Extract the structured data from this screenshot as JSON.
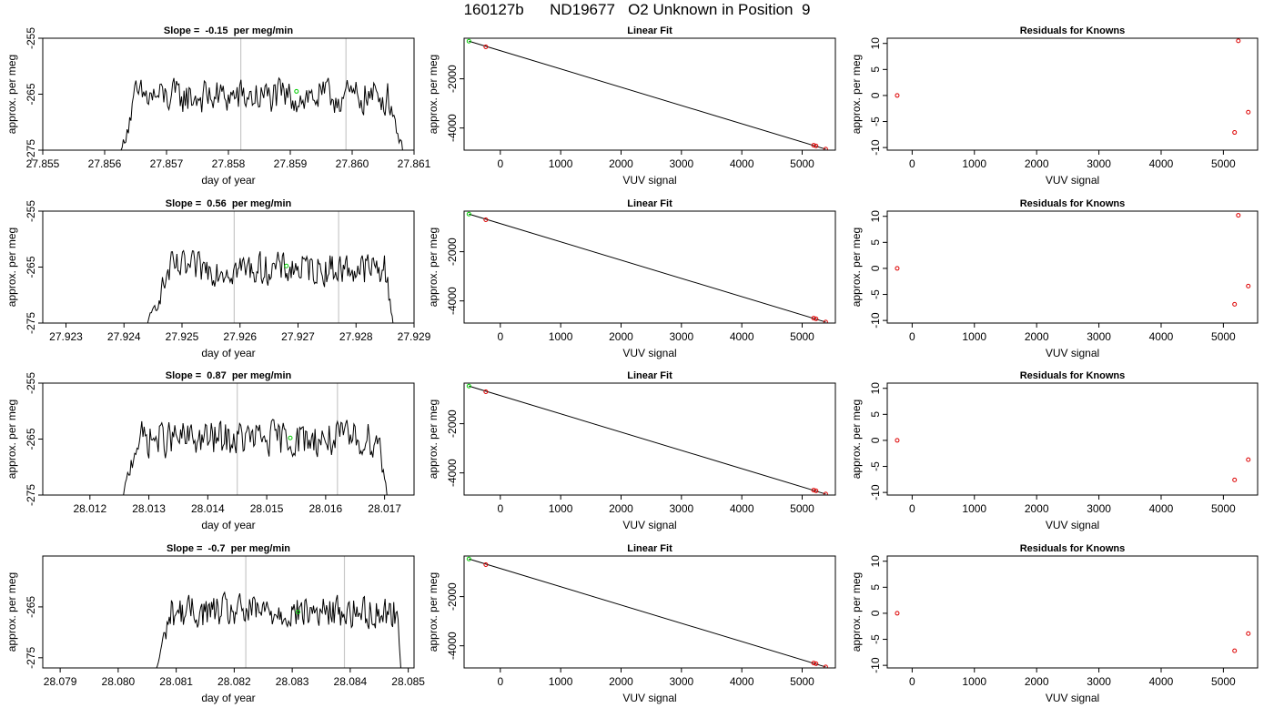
{
  "figure": {
    "title": "160127b      ND19677   O2 Unknown in Position  9"
  },
  "chart_data": [
    {
      "type": "line",
      "panel": "timeseries",
      "row": 1,
      "title": "Slope =  -0.15  per meg/min",
      "xlabel": "day of year",
      "ylabel": "approx. per meg",
      "xlim": [
        27.855,
        27.861
      ],
      "ylim": [
        -275,
        -255
      ],
      "xticks": [
        27.855,
        27.856,
        27.857,
        27.858,
        27.859,
        27.86,
        27.861
      ],
      "xtick_labels": [
        "27.855",
        "27.856",
        "27.857",
        "27.858",
        "27.859",
        "27.860",
        "27.861"
      ],
      "yticks": [
        -275,
        -265,
        -255
      ],
      "ytick_labels": [
        "-275",
        "-265",
        "-255"
      ],
      "vlines": [
        27.8582,
        27.8599
      ],
      "signal": {
        "start": 27.8562,
        "plateau_start": 27.8565,
        "plateau_end": 27.8606,
        "end": 27.8609,
        "level": -265.5,
        "amplitude": 3.2
      },
      "mean_point": {
        "x": 27.8591,
        "y": -264.5
      }
    },
    {
      "type": "scatter",
      "panel": "linear_fit",
      "row": 1,
      "title": "Linear Fit",
      "xlabel": "VUV signal",
      "ylabel": "approx. per meg",
      "xlim": [
        -600,
        5550
      ],
      "ylim": [
        -4900,
        -350
      ],
      "xticks": [
        0,
        1000,
        2000,
        3000,
        4000,
        5000
      ],
      "xtick_labels": [
        "0",
        "1000",
        "2000",
        "3000",
        "4000",
        "5000"
      ],
      "yticks": [
        -4000,
        -2000
      ],
      "ytick_labels": [
        "-4000",
        "-2000"
      ],
      "line": [
        [
          -520,
          -470
        ],
        [
          5390,
          -4860
        ]
      ],
      "points_green": [
        [
          -520,
          -470
        ]
      ],
      "points_red": [
        [
          -240,
          -700
        ],
        [
          5190,
          -4700
        ],
        [
          5230,
          -4730
        ],
        [
          5390,
          -4860
        ]
      ]
    },
    {
      "type": "scatter",
      "panel": "residuals",
      "row": 1,
      "title": "Residuals for Knowns",
      "xlabel": "VUV signal",
      "ylabel": "approx. per meg",
      "xlim": [
        -400,
        5550
      ],
      "ylim": [
        -10.5,
        11
      ],
      "xticks": [
        0,
        1000,
        2000,
        3000,
        4000,
        5000
      ],
      "xtick_labels": [
        "0",
        "1000",
        "2000",
        "3000",
        "4000",
        "5000"
      ],
      "yticks": [
        -10,
        -5,
        0,
        5,
        10
      ],
      "ytick_labels": [
        "-10",
        "-5",
        "0",
        "5",
        "10"
      ],
      "points_red": [
        [
          -240,
          0
        ],
        [
          5240,
          10.5
        ],
        [
          5400,
          -3.2
        ],
        [
          5180,
          -7.1
        ]
      ]
    },
    {
      "type": "line",
      "panel": "timeseries",
      "row": 2,
      "title": "Slope =  0.56  per meg/min",
      "xlabel": "day of year",
      "ylabel": "approx. per meg",
      "xlim": [
        27.9226,
        27.929
      ],
      "ylim": [
        -275,
        -255
      ],
      "xticks": [
        27.923,
        27.924,
        27.925,
        27.926,
        27.927,
        27.928,
        27.929
      ],
      "xtick_labels": [
        "27.923",
        "27.924",
        "27.925",
        "27.926",
        "27.927",
        "27.928",
        "27.929"
      ],
      "yticks": [
        -275,
        -265,
        -255
      ],
      "ytick_labels": [
        "-275",
        "-265",
        "-255"
      ],
      "vlines": [
        27.9259,
        27.9277
      ],
      "signal": {
        "start": 27.9243,
        "plateau_start": 27.9248,
        "plateau_end": 27.9285,
        "end": 27.9287,
        "level": -265.3,
        "amplitude": 3.0
      },
      "mean_point": {
        "x": 27.9268,
        "y": -264.8
      }
    },
    {
      "type": "scatter",
      "panel": "linear_fit",
      "row": 2,
      "title": "Linear Fit",
      "xlabel": "VUV signal",
      "ylabel": "approx. per meg",
      "xlim": [
        -600,
        5550
      ],
      "ylim": [
        -4900,
        -350
      ],
      "xticks": [
        0,
        1000,
        2000,
        3000,
        4000,
        5000
      ],
      "xtick_labels": [
        "0",
        "1000",
        "2000",
        "3000",
        "4000",
        "5000"
      ],
      "yticks": [
        -4000,
        -2000
      ],
      "ytick_labels": [
        "-4000",
        "-2000"
      ],
      "line": [
        [
          -520,
          -470
        ],
        [
          5390,
          -4860
        ]
      ],
      "points_green": [
        [
          -520,
          -470
        ]
      ],
      "points_red": [
        [
          -240,
          -700
        ],
        [
          5190,
          -4700
        ],
        [
          5230,
          -4730
        ],
        [
          5390,
          -4860
        ]
      ]
    },
    {
      "type": "scatter",
      "panel": "residuals",
      "row": 2,
      "title": "Residuals for Knowns",
      "xlabel": "VUV signal",
      "ylabel": "approx. per meg",
      "xlim": [
        -400,
        5550
      ],
      "ylim": [
        -10.5,
        11
      ],
      "xticks": [
        0,
        1000,
        2000,
        3000,
        4000,
        5000
      ],
      "xtick_labels": [
        "0",
        "1000",
        "2000",
        "3000",
        "4000",
        "5000"
      ],
      "yticks": [
        -10,
        -5,
        0,
        5,
        10
      ],
      "ytick_labels": [
        "-10",
        "-5",
        "0",
        "5",
        "10"
      ],
      "points_red": [
        [
          -240,
          0
        ],
        [
          5240,
          10.2
        ],
        [
          5400,
          -3.4
        ],
        [
          5180,
          -6.9
        ]
      ]
    },
    {
      "type": "line",
      "panel": "timeseries",
      "row": 3,
      "title": "Slope =  0.87  per meg/min",
      "xlabel": "day of year",
      "ylabel": "approx. per meg",
      "xlim": [
        28.0112,
        28.0175
      ],
      "ylim": [
        -275,
        -255
      ],
      "xticks": [
        28.012,
        28.013,
        28.014,
        28.015,
        28.016,
        28.017
      ],
      "xtick_labels": [
        "28.012",
        "28.013",
        "28.014",
        "28.015",
        "28.016",
        "28.017"
      ],
      "yticks": [
        -275,
        -265,
        -255
      ],
      "ytick_labels": [
        "-275",
        "-265",
        "-255"
      ],
      "vlines": [
        28.0145,
        28.0162
      ],
      "signal": {
        "start": 28.0125,
        "plateau_start": 28.0128,
        "plateau_end": 28.0169,
        "end": 28.0171,
        "level": -265.0,
        "amplitude": 3.3
      },
      "mean_point": {
        "x": 28.0154,
        "y": -264.8
      }
    },
    {
      "type": "scatter",
      "panel": "linear_fit",
      "row": 3,
      "title": "Linear Fit",
      "xlabel": "VUV signal",
      "ylabel": "approx. per meg",
      "xlim": [
        -600,
        5550
      ],
      "ylim": [
        -4900,
        -350
      ],
      "xticks": [
        0,
        1000,
        2000,
        3000,
        4000,
        5000
      ],
      "xtick_labels": [
        "0",
        "1000",
        "2000",
        "3000",
        "4000",
        "5000"
      ],
      "yticks": [
        -4000,
        -2000
      ],
      "ytick_labels": [
        "-4000",
        "-2000"
      ],
      "line": [
        [
          -520,
          -470
        ],
        [
          5390,
          -4860
        ]
      ],
      "points_green": [
        [
          -520,
          -470
        ]
      ],
      "points_red": [
        [
          -240,
          -700
        ],
        [
          5190,
          -4700
        ],
        [
          5230,
          -4730
        ],
        [
          5390,
          -4860
        ]
      ]
    },
    {
      "type": "scatter",
      "panel": "residuals",
      "row": 3,
      "title": "Residuals for Knowns",
      "xlabel": "VUV signal",
      "ylabel": "approx. per meg",
      "xlim": [
        -400,
        5550
      ],
      "ylim": [
        -10.5,
        11
      ],
      "xticks": [
        0,
        1000,
        2000,
        3000,
        4000,
        5000
      ],
      "xtick_labels": [
        "0",
        "1000",
        "2000",
        "3000",
        "4000",
        "5000"
      ],
      "yticks": [
        -10,
        -5,
        0,
        5,
        10
      ],
      "ytick_labels": [
        "-10",
        "-5",
        "0",
        "5",
        "10"
      ],
      "points_red": [
        [
          -240,
          0
        ],
        [
          5400,
          -3.7
        ],
        [
          5180,
          -7.6
        ]
      ]
    },
    {
      "type": "line",
      "panel": "timeseries",
      "row": 4,
      "title": "Slope =  -0.7  per meg/min",
      "xlabel": "day of year",
      "ylabel": "approx. per meg",
      "xlim": [
        28.0787,
        28.0851
      ],
      "ylim": [
        -277,
        -255
      ],
      "xticks": [
        28.079,
        28.08,
        28.081,
        28.082,
        28.083,
        28.084,
        28.085
      ],
      "xtick_labels": [
        "28.079",
        "28.080",
        "28.081",
        "28.082",
        "28.083",
        "28.084",
        "28.085"
      ],
      "yticks": [
        -275,
        -265
      ],
      "ytick_labels": [
        "-275",
        "-265"
      ],
      "vlines": [
        28.0822,
        28.0839
      ],
      "signal": {
        "start": 28.0806,
        "plateau_start": 28.0809,
        "plateau_end": 28.0848,
        "end": 28.0849,
        "level": -266.0,
        "amplitude": 3.4
      },
      "mean_point": {
        "x": 28.0831,
        "y": -266.0
      }
    },
    {
      "type": "scatter",
      "panel": "linear_fit",
      "row": 4,
      "title": "Linear Fit",
      "xlabel": "VUV signal",
      "ylabel": "approx. per meg",
      "xlim": [
        -600,
        5550
      ],
      "ylim": [
        -4900,
        -350
      ],
      "xticks": [
        0,
        1000,
        2000,
        3000,
        4000,
        5000
      ],
      "xtick_labels": [
        "0",
        "1000",
        "2000",
        "3000",
        "4000",
        "5000"
      ],
      "yticks": [
        -4000,
        -2000
      ],
      "ytick_labels": [
        "-4000",
        "-2000"
      ],
      "line": [
        [
          -520,
          -470
        ],
        [
          5390,
          -4860
        ]
      ],
      "points_green": [
        [
          -520,
          -470
        ]
      ],
      "points_red": [
        [
          -240,
          -700
        ],
        [
          5190,
          -4700
        ],
        [
          5230,
          -4730
        ],
        [
          5390,
          -4860
        ]
      ]
    },
    {
      "type": "scatter",
      "panel": "residuals",
      "row": 4,
      "title": "Residuals for Knowns",
      "xlabel": "VUV signal",
      "ylabel": "approx. per meg",
      "xlim": [
        -400,
        5550
      ],
      "ylim": [
        -10.5,
        11
      ],
      "xticks": [
        0,
        1000,
        2000,
        3000,
        4000,
        5000
      ],
      "xtick_labels": [
        "0",
        "1000",
        "2000",
        "3000",
        "4000",
        "5000"
      ],
      "yticks": [
        -10,
        -5,
        0,
        5,
        10
      ],
      "ytick_labels": [
        "-10",
        "-5",
        "0",
        "5",
        "10"
      ],
      "points_red": [
        [
          -240,
          0
        ],
        [
          5400,
          -3.9
        ],
        [
          5180,
          -7.2
        ]
      ]
    }
  ],
  "colors": {
    "line": "#000000",
    "mean_point": "#00cc00",
    "known_point": "#dd0000",
    "fit_green": "#00cc00",
    "vline": "#c8c8c8",
    "frame": "#000000"
  }
}
